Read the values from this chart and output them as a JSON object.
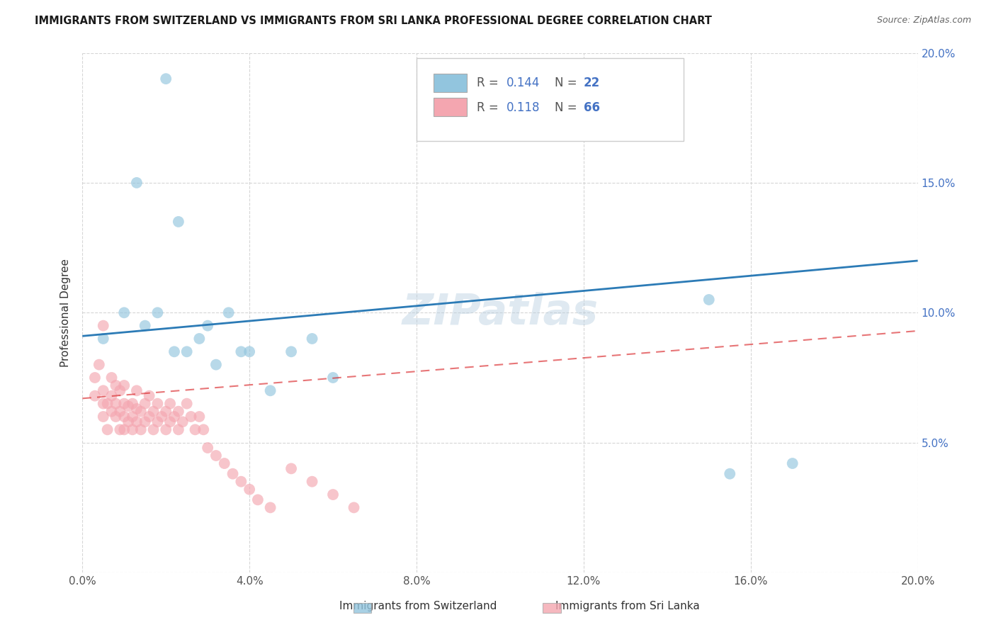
{
  "title": "IMMIGRANTS FROM SWITZERLAND VS IMMIGRANTS FROM SRI LANKA PROFESSIONAL DEGREE CORRELATION CHART",
  "source": "Source: ZipAtlas.com",
  "ylabel": "Professional Degree",
  "x_label_switzerland": "Immigrants from Switzerland",
  "x_label_srilanka": "Immigrants from Sri Lanka",
  "xlim": [
    0.0,
    0.2
  ],
  "ylim": [
    0.0,
    0.2
  ],
  "xticks": [
    0.0,
    0.04,
    0.08,
    0.12,
    0.16,
    0.2
  ],
  "yticks": [
    0.0,
    0.05,
    0.1,
    0.15,
    0.2
  ],
  "blue_R": "0.144",
  "blue_N": "22",
  "pink_R": "0.118",
  "pink_N": "66",
  "blue_color": "#92c5de",
  "pink_color": "#f4a6b0",
  "blue_line_color": "#2c7bb6",
  "pink_line_color": "#d7191c",
  "watermark": "ZIPatlas",
  "blue_scatter_x": [
    0.005,
    0.01,
    0.013,
    0.015,
    0.018,
    0.02,
    0.022,
    0.025,
    0.028,
    0.03,
    0.032,
    0.035,
    0.038,
    0.04,
    0.045,
    0.05,
    0.055,
    0.06,
    0.15,
    0.155,
    0.17,
    0.023
  ],
  "blue_scatter_y": [
    0.09,
    0.1,
    0.15,
    0.095,
    0.1,
    0.19,
    0.085,
    0.085,
    0.09,
    0.095,
    0.08,
    0.1,
    0.085,
    0.085,
    0.07,
    0.085,
    0.09,
    0.075,
    0.105,
    0.038,
    0.042,
    0.135
  ],
  "pink_scatter_x": [
    0.003,
    0.003,
    0.004,
    0.005,
    0.005,
    0.005,
    0.005,
    0.006,
    0.006,
    0.007,
    0.007,
    0.007,
    0.008,
    0.008,
    0.008,
    0.009,
    0.009,
    0.009,
    0.01,
    0.01,
    0.01,
    0.01,
    0.011,
    0.011,
    0.012,
    0.012,
    0.012,
    0.013,
    0.013,
    0.013,
    0.014,
    0.014,
    0.015,
    0.015,
    0.016,
    0.016,
    0.017,
    0.017,
    0.018,
    0.018,
    0.019,
    0.02,
    0.02,
    0.021,
    0.021,
    0.022,
    0.023,
    0.023,
    0.024,
    0.025,
    0.026,
    0.027,
    0.028,
    0.029,
    0.03,
    0.032,
    0.034,
    0.036,
    0.038,
    0.04,
    0.042,
    0.045,
    0.05,
    0.055,
    0.06,
    0.065
  ],
  "pink_scatter_y": [
    0.068,
    0.075,
    0.08,
    0.06,
    0.065,
    0.07,
    0.095,
    0.055,
    0.065,
    0.062,
    0.068,
    0.075,
    0.06,
    0.065,
    0.072,
    0.055,
    0.062,
    0.07,
    0.055,
    0.06,
    0.065,
    0.072,
    0.058,
    0.064,
    0.055,
    0.06,
    0.065,
    0.058,
    0.063,
    0.07,
    0.055,
    0.062,
    0.058,
    0.065,
    0.06,
    0.068,
    0.055,
    0.062,
    0.058,
    0.065,
    0.06,
    0.055,
    0.062,
    0.058,
    0.065,
    0.06,
    0.055,
    0.062,
    0.058,
    0.065,
    0.06,
    0.055,
    0.06,
    0.055,
    0.048,
    0.045,
    0.042,
    0.038,
    0.035,
    0.032,
    0.028,
    0.025,
    0.04,
    0.035,
    0.03,
    0.025
  ]
}
